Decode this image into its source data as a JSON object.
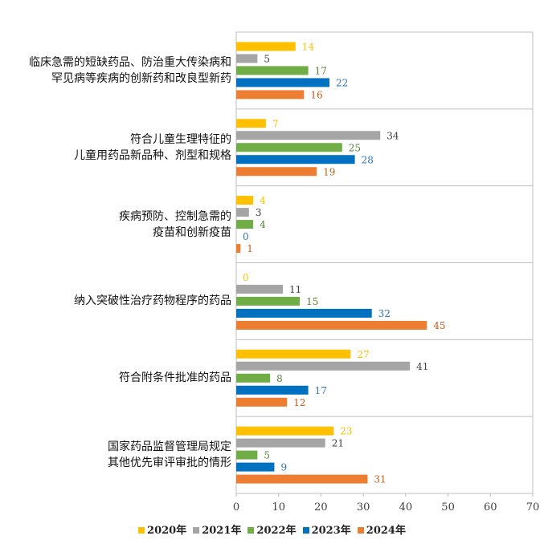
{
  "chart_data": {
    "type": "bar",
    "orientation": "horizontal",
    "categories": [
      [
        "临床急需的短缺药品、防治重大传染病和",
        "罕见病等疾病的创新药和改良型新药"
      ],
      [
        "符合儿童生理特征的",
        "儿童用药品新品种、剂型和规格"
      ],
      [
        "疾病预防、控制急需的",
        "疫苗和创新疫苗"
      ],
      [
        "纳入突破性治疗药物程序的药品"
      ],
      [
        "符合附条件批准的药品"
      ],
      [
        "国家药品监督管理局规定",
        "其他优先审评审批的情形"
      ]
    ],
    "series": [
      {
        "name": "2020年",
        "color": "#FFC000",
        "values": [
          14,
          7,
          4,
          0,
          27,
          23
        ]
      },
      {
        "name": "2021年",
        "color": "#A5A5A5",
        "values": [
          5,
          34,
          3,
          11,
          41,
          21
        ]
      },
      {
        "name": "2022年",
        "color": "#70AD47",
        "values": [
          17,
          25,
          4,
          15,
          8,
          5
        ]
      },
      {
        "name": "2023年",
        "color": "#0070C0",
        "values": [
          22,
          28,
          0,
          32,
          17,
          9
        ]
      },
      {
        "name": "2024年",
        "color": "#ED7D31",
        "values": [
          16,
          19,
          1,
          45,
          12,
          31
        ]
      }
    ],
    "label_colors": [
      "#FFC000",
      "#404040",
      "#548235",
      "#2E75B6",
      "#C55A11"
    ],
    "xlim": [
      0,
      70
    ],
    "xticks": [
      0,
      10,
      20,
      30,
      40,
      50,
      60,
      70
    ],
    "legend_position": "bottom",
    "grid": false
  }
}
